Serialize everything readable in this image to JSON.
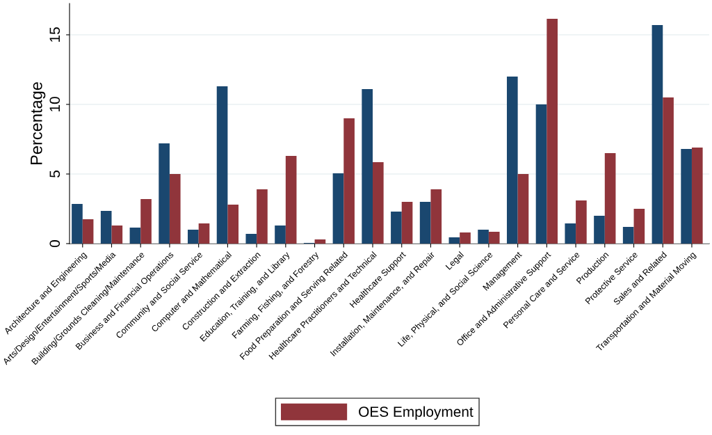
{
  "chart_data": {
    "type": "bar",
    "ylabel": "Percentage",
    "categories": [
      "Architecture and Engineering",
      "Arts/Design/Entertainment/Sports/Media",
      "Building/Grounds Cleaning/Maintenance",
      "Business and Financial Operations",
      "Community and Social Service",
      "Computer and Mathematical",
      "Construction and Extraction",
      "Education, Training, and Library",
      "Farming, Fishing, and Forestry",
      "Food Preparation and Serving Related",
      "Healthcare Practitioners and Technical",
      "Healthcare Support",
      "Installation, Maintenance, and Repair",
      "Legal",
      "Life, Physical, and Social Science",
      "Management",
      "Office and Administrative Support",
      "Personal Care and Service",
      "Production",
      "Protective Service",
      "Sales and Related",
      "Transportation and Material Moving"
    ],
    "series": [
      {
        "color": "#1a476f",
        "values": [
          2.85,
          2.35,
          1.15,
          7.2,
          1.0,
          11.3,
          0.7,
          1.3,
          0.05,
          5.05,
          11.1,
          2.3,
          3.0,
          0.45,
          1.0,
          12.0,
          10.0,
          1.45,
          2.0,
          1.2,
          15.7,
          6.8
        ]
      },
      {
        "name": "OES Employment",
        "color": "#90353b",
        "values": [
          1.75,
          1.3,
          3.2,
          5.0,
          1.45,
          2.8,
          3.9,
          6.3,
          0.3,
          9.0,
          5.85,
          3.0,
          3.9,
          0.8,
          0.85,
          5.0,
          16.15,
          3.1,
          6.5,
          2.5,
          10.5,
          6.9
        ]
      }
    ],
    "ylim": [
      0,
      17.25
    ],
    "yticks": [
      0,
      5,
      10,
      15
    ],
    "grid": "y",
    "legend": "bottom"
  }
}
